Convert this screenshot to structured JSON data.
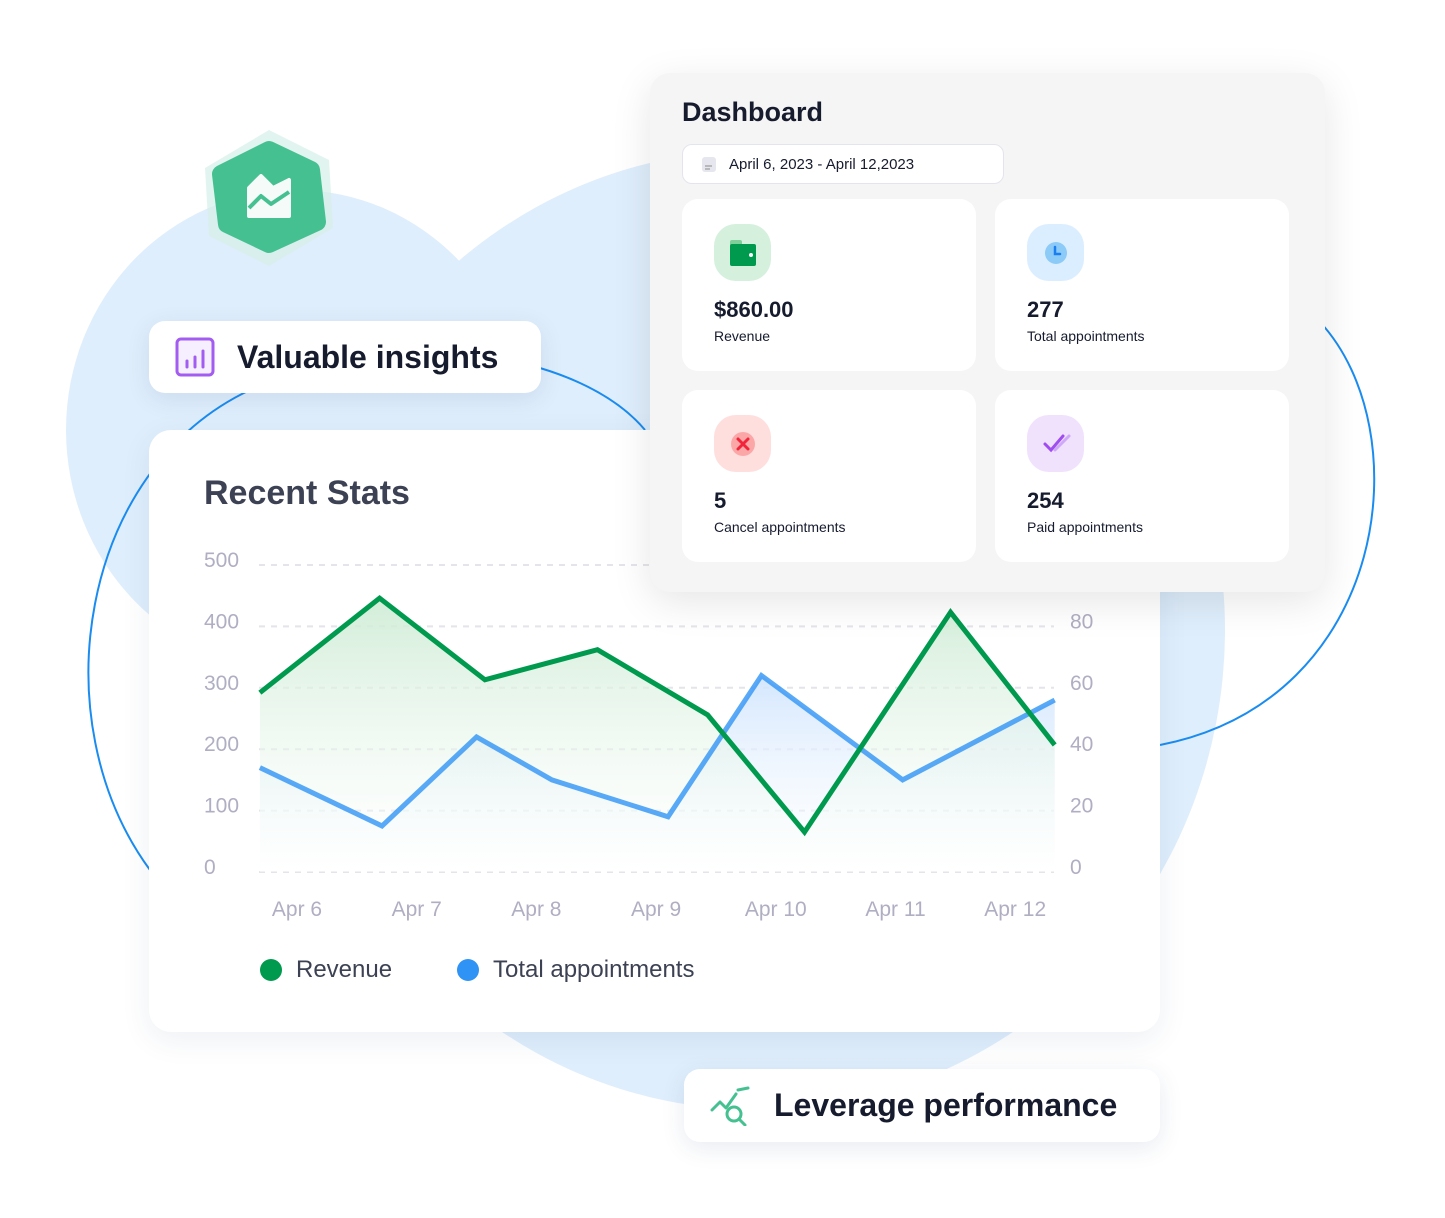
{
  "colors": {
    "revenue": "#009a4e",
    "appointments": "#2f93f5",
    "background_blob": "#dfeefc"
  },
  "badges": {
    "insights": "Valuable insights",
    "performance": "Leverage performance"
  },
  "dashboard": {
    "title": "Dashboard",
    "date_range": "April 6, 2023 - April 12,2023",
    "stats": [
      {
        "icon": "wallet-icon",
        "value": "$860.00",
        "label": "Revenue"
      },
      {
        "icon": "clock-icon",
        "value": "277",
        "label": "Total appointments"
      },
      {
        "icon": "cancel-icon",
        "value": "5",
        "label": "Cancel appointments"
      },
      {
        "icon": "double-check-icon",
        "value": "254",
        "label": "Paid appointments"
      }
    ]
  },
  "chart_data": {
    "type": "area",
    "title": "Recent Stats",
    "categories": [
      "Apr 6",
      "Apr 7",
      "Apr 8",
      "Apr 9",
      "Apr 10",
      "Apr 11",
      "Apr 12"
    ],
    "left_ticks": [
      "0",
      "100",
      "200",
      "300",
      "400",
      "500"
    ],
    "right_ticks": [
      "0",
      "20",
      "40",
      "60",
      "80"
    ],
    "ylim_left": [
      0,
      500
    ],
    "ylim_right": [
      0,
      100
    ],
    "grid": true,
    "legend_placement": "bottom-left",
    "series": [
      {
        "name": "Revenue",
        "axis": "left",
        "x": [
          5.69,
          6.69,
          7.57,
          8.51,
          9.43,
          10.24,
          11.46,
          12.33
        ],
        "values": [
          292,
          446,
          313,
          362,
          256,
          65,
          423,
          207
        ]
      },
      {
        "name": "Total appointments",
        "axis": "right",
        "x": [
          5.69,
          6.71,
          7.5,
          8.13,
          9.1,
          9.88,
          11.06,
          12.33
        ],
        "values": [
          34,
          15,
          44,
          30,
          18,
          64,
          30,
          56
        ]
      }
    ]
  }
}
